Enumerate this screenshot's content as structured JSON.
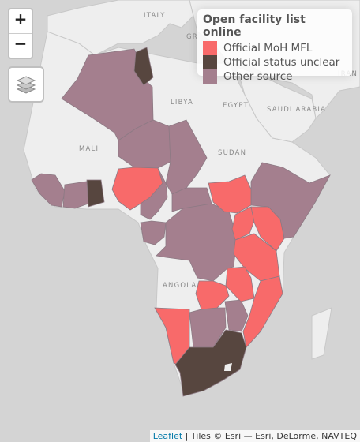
{
  "controls": {
    "zoom_in": "+",
    "zoom_out": "−"
  },
  "legend": {
    "title": "Open facility list online",
    "items": [
      {
        "label": "Official MoH MFL",
        "color": "#f86a6a"
      },
      {
        "label": "Official status unclear",
        "color": "#57463f"
      },
      {
        "label": "Other source",
        "color": "#a47f8e"
      }
    ]
  },
  "map_labels": {
    "italy": "ITALY",
    "greece": "GR",
    "libya": "LIBYA",
    "egypt": "EGYPT",
    "saudi": "SAUDI ARABIA",
    "mali": "MALI",
    "sudan": "SUDAN",
    "angola": "ANGOLA",
    "iran": "IRAN"
  },
  "colors": {
    "sea": "#d4d4d4",
    "land": "#eeeeee",
    "border": "#c8c8c8",
    "country_border": "#8d7a84"
  },
  "attribution": {
    "link": "Leaflet",
    "text": " | Tiles © Esri — Esri, DeLorme, NAVTEQ"
  }
}
